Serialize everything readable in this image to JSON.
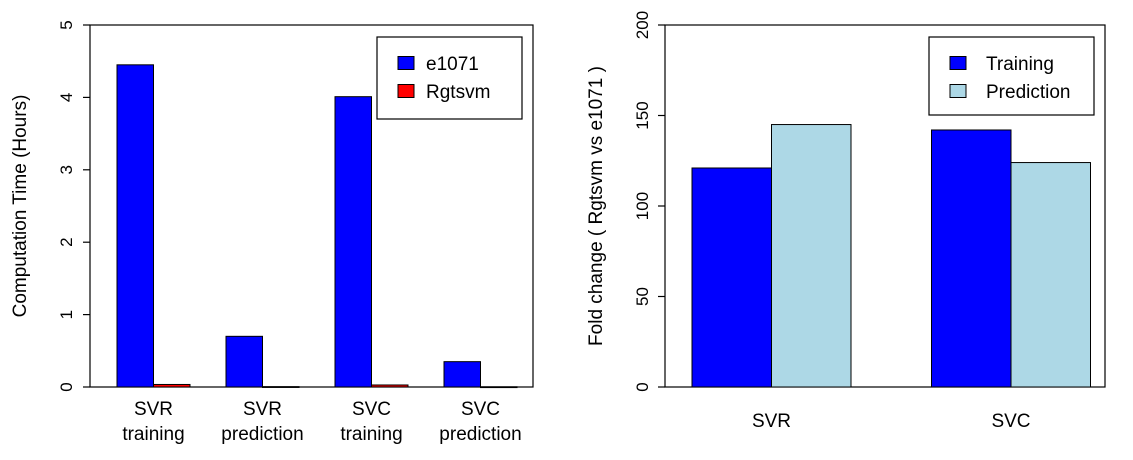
{
  "chart_data": [
    {
      "type": "bar",
      "categories": [
        [
          "SVR",
          "training"
        ],
        [
          "SVR",
          "prediction"
        ],
        [
          "SVC",
          "training"
        ],
        [
          "SVC",
          "prediction"
        ]
      ],
      "series": [
        {
          "name": "e1071",
          "values": [
            4.45,
            0.7,
            4.01,
            0.35
          ],
          "color": "#0000ff"
        },
        {
          "name": "Rgtsvm",
          "values": [
            0.035,
            0.005,
            0.028,
            0.003
          ],
          "color": "#ff0000"
        }
      ],
      "ylabel": "Computation Time (Hours)",
      "ylim": [
        0,
        5
      ],
      "yticks": [
        0,
        1,
        2,
        3,
        4,
        5
      ],
      "legend": "top-right",
      "grid": false
    },
    {
      "type": "bar",
      "categories": [
        [
          "SVR"
        ],
        [
          "SVC"
        ]
      ],
      "series": [
        {
          "name": "Training",
          "values": [
            121,
            142
          ],
          "color": "#0000ff"
        },
        {
          "name": "Prediction",
          "values": [
            145,
            124
          ],
          "color": "#add8e6"
        }
      ],
      "ylabel": "Fold change ( Rgtsvm vs e1071 )",
      "ylim": [
        0,
        200
      ],
      "yticks": [
        0,
        50,
        100,
        150,
        200
      ],
      "legend": "top-right",
      "grid": false
    }
  ]
}
